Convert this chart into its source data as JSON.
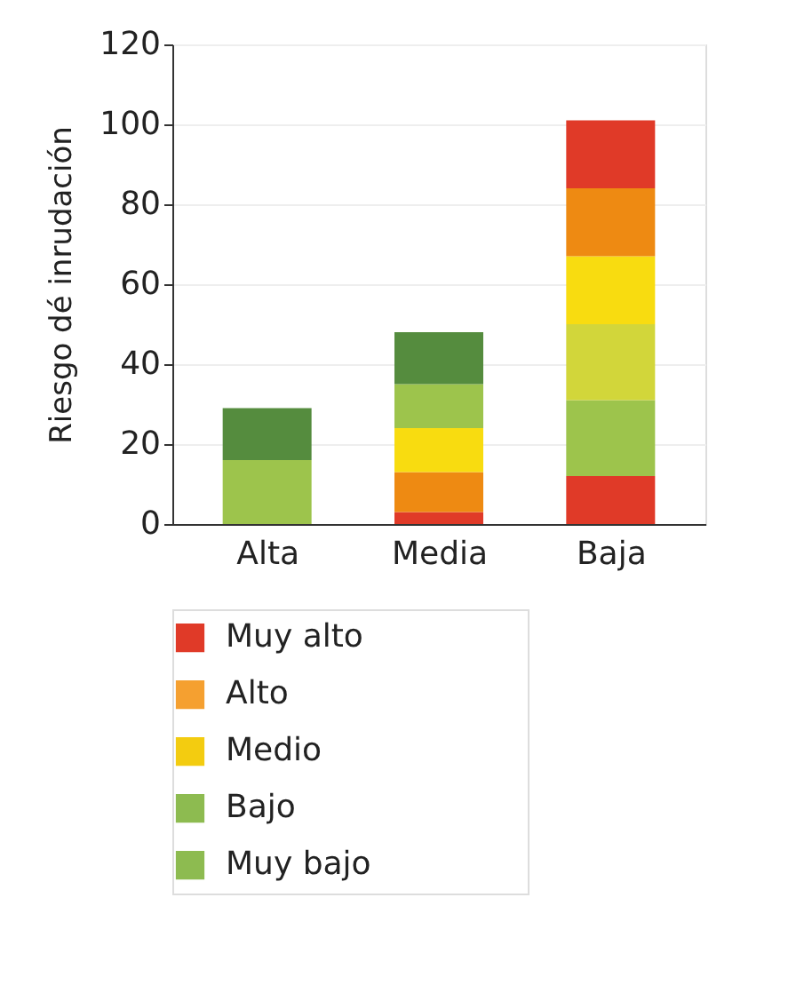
{
  "chart_data": {
    "type": "bar",
    "stacked": true,
    "ylabel": "Riesgo dé inrudación",
    "categories": [
      "Alta",
      "Media",
      "Baja"
    ],
    "series": [
      {
        "colors": [
          "#9dc44c",
          "#e03a28",
          "#e03a28"
        ],
        "values": [
          16,
          3,
          12
        ]
      },
      {
        "colors": [
          "#558c3e",
          "#ee8a12",
          "#9dc44c"
        ],
        "values": [
          13,
          10,
          19
        ]
      },
      {
        "colors": [
          null,
          "#f8dc10",
          "#d2d63a"
        ],
        "values": [
          null,
          11,
          19
        ]
      },
      {
        "colors": [
          null,
          "#9dc44c",
          "#f8dc10"
        ],
        "values": [
          null,
          11,
          17
        ]
      },
      {
        "colors": [
          null,
          "#558c3e",
          "#ee8a12"
        ],
        "values": [
          null,
          13,
          17
        ]
      },
      {
        "colors": [
          null,
          null,
          "#e03a28"
        ],
        "values": [
          null,
          null,
          17
        ]
      },
      {
        "name": "Muy alto",
        "color": "#e03a28",
        "values": [
          null,
          null,
          null
        ]
      },
      {
        "name": "Alto",
        "color": "#f5a030",
        "values": [
          null,
          null,
          null
        ]
      },
      {
        "name": "Medio",
        "color": "#f3cc10",
        "values": [
          null,
          null,
          null
        ]
      },
      {
        "name": "Bajo",
        "color": "#8dbb50",
        "values": [
          null,
          null,
          null
        ]
      },
      {
        "name": "Muy bajo",
        "color": "#8dbb50",
        "values": [
          null,
          null,
          null
        ]
      }
    ],
    "ylim": [
      0,
      120
    ],
    "yticks": [
      0,
      20,
      40,
      60,
      80,
      100,
      120
    ],
    "grid": "y",
    "legend": "bottom"
  }
}
